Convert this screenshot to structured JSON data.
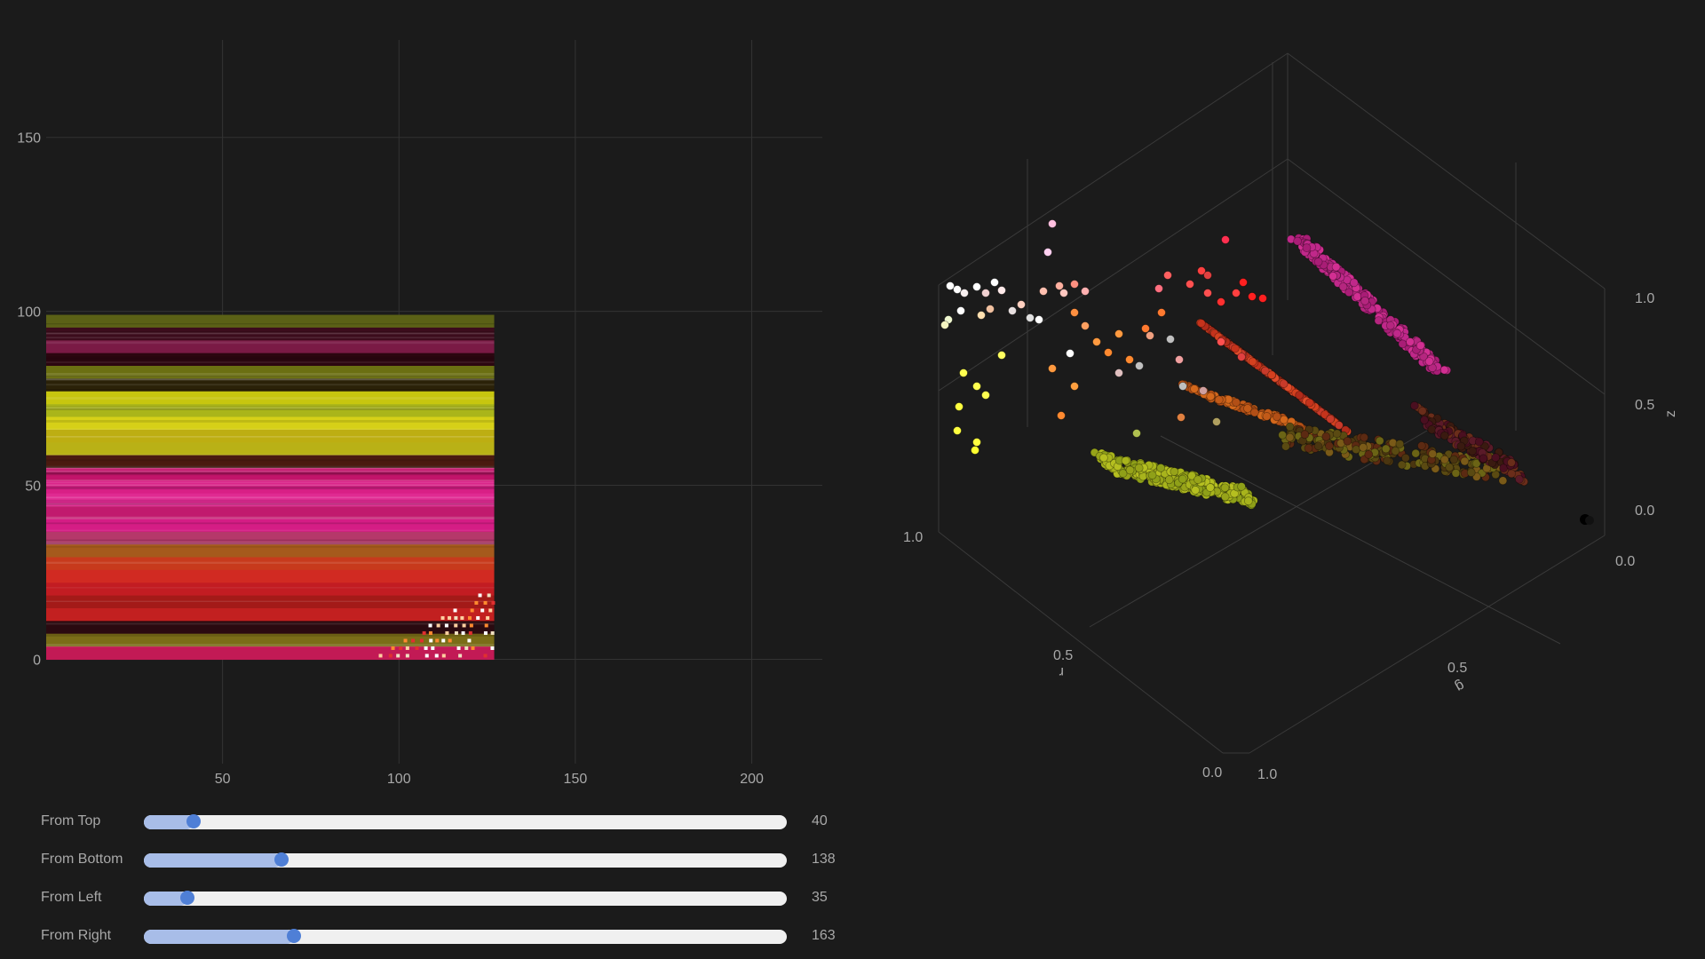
{
  "heatmap": {
    "x_ticks": [
      "50",
      "100",
      "150",
      "200"
    ],
    "y_ticks": [
      "0",
      "50",
      "100",
      "150"
    ],
    "x_range": [
      0,
      220
    ],
    "y_range": [
      -30,
      178
    ],
    "image_extent": {
      "x": [
        0,
        127
      ],
      "y": [
        0,
        99
      ]
    },
    "band_colors": [
      "#5b6116",
      "#3c0c1c",
      "#7a1a45",
      "#2c0610",
      "#6b6f12",
      "#2b2208",
      "#c7c60f",
      "#aab51a",
      "#d6d018",
      "#bdae12",
      "#b9b116",
      "#4a1a10",
      "#c2146a",
      "#d91f86",
      "#e02a92",
      "#c11a6e",
      "#d51d85",
      "#b5386a",
      "#a55a1c",
      "#c73a1c",
      "#d12a22",
      "#c21c22",
      "#a31a18",
      "#c22020",
      "#2a0a10",
      "#7a6d18",
      "#c21a55"
    ]
  },
  "scatter3d": {
    "axis_ticks": {
      "x": [
        "0.5",
        "1.0"
      ],
      "y": [
        "0.5",
        "1.0"
      ],
      "z": [
        "0.0",
        "0.5",
        "1.0"
      ],
      "origin_x": "0.0",
      "origin_y": "0.0"
    },
    "axis_titles": {
      "x": "r",
      "y": "g",
      "z": "z"
    }
  },
  "sliders": [
    {
      "label": "From Top",
      "value": "40",
      "fraction": 0.066
    },
    {
      "label": "From Bottom",
      "value": "138",
      "fraction": 0.203
    },
    {
      "label": "From Left",
      "value": "35",
      "fraction": 0.056
    },
    {
      "label": "From Right",
      "value": "163",
      "fraction": 0.222
    }
  ]
}
